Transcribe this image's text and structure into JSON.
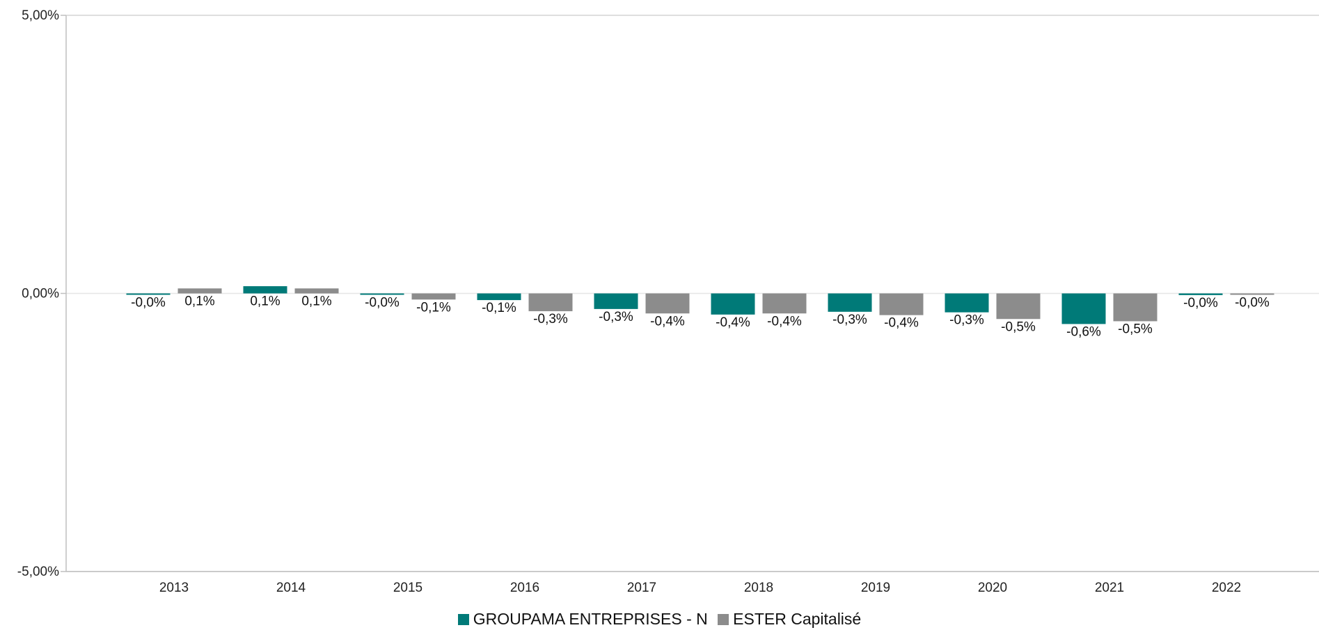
{
  "chart_data": {
    "type": "bar",
    "title": "",
    "xlabel": "",
    "ylabel": "",
    "categories": [
      "2013",
      "2014",
      "2015",
      "2016",
      "2017",
      "2018",
      "2019",
      "2020",
      "2021",
      "2022"
    ],
    "series": [
      {
        "name": "GROUPAMA ENTREPRISES - N",
        "color": "#007a78",
        "values": [
          -0.01,
          0.13,
          -0.02,
          -0.12,
          -0.28,
          -0.38,
          -0.33,
          -0.34,
          -0.55,
          -0.03
        ],
        "labels": [
          "-0,0%",
          "0,1%",
          "-0,0%",
          "-0,1%",
          "-0,3%",
          "-0,4%",
          "-0,3%",
          "-0,3%",
          "-0,6%",
          "-0,0%"
        ]
      },
      {
        "name": "ESTER Capitalisé",
        "color": "#8c8c8c",
        "values": [
          0.09,
          0.09,
          -0.11,
          -0.32,
          -0.36,
          -0.36,
          -0.39,
          -0.46,
          -0.5,
          -0.01
        ],
        "labels": [
          "0,1%",
          "0,1%",
          "-0,1%",
          "-0,3%",
          "-0,4%",
          "-0,4%",
          "-0,4%",
          "-0,5%",
          "-0,5%",
          "-0,0%"
        ]
      }
    ],
    "ylim": [
      -5,
      5
    ],
    "yticks": [
      {
        "value": 5,
        "label": "5,00%"
      },
      {
        "value": 0,
        "label": "0,00%"
      },
      {
        "value": -5,
        "label": "-5,00%"
      }
    ],
    "grid": "horizontal",
    "legend_position": "bottom"
  }
}
